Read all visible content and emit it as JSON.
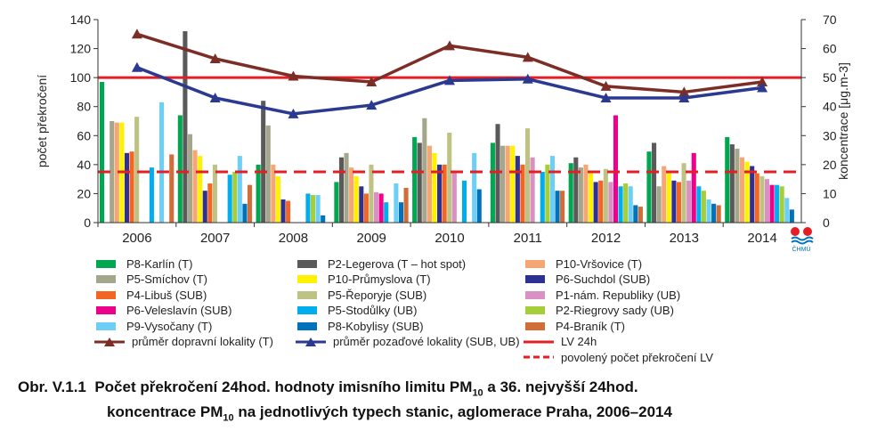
{
  "chart_data": {
    "type": "bar",
    "categories": [
      "2006",
      "2007",
      "2008",
      "2009",
      "2010",
      "2011",
      "2012",
      "2013",
      "2014"
    ],
    "ylabel": "počet překročení",
    "ylabel_right": "koncentrace [μg.m-3]",
    "ylim": [
      0,
      140
    ],
    "y_ticks": [
      0,
      20,
      40,
      60,
      80,
      100,
      120,
      140
    ],
    "ylim_right": [
      0,
      70
    ],
    "y_ticks_right": [
      0,
      10,
      20,
      30,
      40,
      50,
      60,
      70
    ],
    "series": [
      {
        "name": "P8-Karlín (T)",
        "color": "#00a650",
        "values": [
          97,
          74,
          40,
          28,
          59,
          55,
          41,
          49,
          59
        ]
      },
      {
        "name": "P2-Legerova (T – hot spot)",
        "color": "#5a5a5a",
        "values": [
          null,
          132,
          84,
          45,
          55,
          68,
          45,
          55,
          54
        ]
      },
      {
        "name": "P5-Smíchov (T)",
        "color": "#a4a78c",
        "values": [
          70,
          61,
          67,
          48,
          72,
          53,
          38,
          25,
          51
        ]
      },
      {
        "name": "P10-Vršovice (T)",
        "color": "#f5a673",
        "values": [
          69,
          50,
          40,
          38,
          53,
          53,
          40,
          39,
          45
        ]
      },
      {
        "name": "P10-Průmyslova (T)",
        "color": "#fff200",
        "values": [
          69,
          46,
          32,
          32,
          48,
          53,
          34,
          35,
          42
        ]
      },
      {
        "name": "P6-Suchdol (SUB)",
        "color": "#2e3192",
        "values": [
          48,
          22,
          16,
          25,
          40,
          46,
          28,
          29,
          39
        ]
      },
      {
        "name": "P4-Libuš (SUB)",
        "color": "#f26522",
        "values": [
          49,
          27,
          15,
          20,
          40,
          40,
          29,
          28,
          34
        ]
      },
      {
        "name": "P5-Řeporyje (SUB)",
        "color": "#bec283",
        "values": [
          73,
          40,
          null,
          40,
          62,
          65,
          37,
          41,
          32
        ]
      },
      {
        "name": "P1-nám. Republiky (UB)",
        "color": "#d991c4",
        "values": [
          null,
          null,
          null,
          21,
          35,
          45,
          28,
          29,
          30
        ]
      },
      {
        "name": "P6-Veleslavín (SUB)",
        "color": "#ec008c",
        "values": [
          null,
          null,
          null,
          20,
          null,
          null,
          74,
          48,
          26
        ]
      },
      {
        "name": "P5-Stodůlky (UB)",
        "color": "#00aeef",
        "values": [
          38,
          33,
          20,
          14,
          29,
          35,
          25,
          25,
          26
        ]
      },
      {
        "name": "P2-Riegrovy sady (UB)",
        "color": "#a6ce39",
        "values": [
          null,
          35,
          19,
          null,
          null,
          40,
          27,
          22,
          25
        ]
      },
      {
        "name": "P9-Vysočany (T)",
        "color": "#6dcff6",
        "values": [
          83,
          46,
          19,
          27,
          48,
          46,
          25,
          16,
          17
        ]
      },
      {
        "name": "P8-Kobylisy (SUB)",
        "color": "#0072bc",
        "values": [
          null,
          13,
          5,
          14,
          23,
          22,
          12,
          13,
          9
        ]
      },
      {
        "name": "P4-Braník (T)",
        "color": "#d16d38",
        "values": [
          47,
          26,
          null,
          24,
          null,
          22,
          11,
          12,
          null
        ]
      }
    ],
    "lines": [
      {
        "name": "průměr dopravní lokality (T)",
        "color": "#7b2d26",
        "marker": "triangle-up",
        "axis": "left",
        "values": [
          130,
          113,
          101,
          97,
          122,
          114,
          94,
          90,
          97
        ]
      },
      {
        "name": "průměr pozaďové lokality (SUB, UB)",
        "color": "#2b3990",
        "marker": "triangle-up",
        "axis": "left",
        "values": [
          107,
          86,
          75,
          81,
          98,
          99,
          86,
          86,
          93
        ]
      },
      {
        "name": "LV 24h",
        "color": "#e31e24",
        "style": "solid",
        "axis": "right",
        "value": 50
      },
      {
        "name": "povolený počet překročení LV",
        "color": "#e31e24",
        "style": "dashed",
        "axis": "left",
        "value": 35
      }
    ],
    "grid": false,
    "legend_position": "bottom"
  },
  "caption": {
    "prefix": "Obr. V.1.1",
    "line1a": "Počet překročení 24hod. hodnoty imisního limitu PM",
    "line1b": " a 36. nejvyšší 24hod.",
    "line2a": "koncentrace PM",
    "line2b": " na jednotlivých typech stanic, aglomerace Praha, 2006–2014",
    "sub": "10"
  },
  "logo_text": "ČHMÚ"
}
